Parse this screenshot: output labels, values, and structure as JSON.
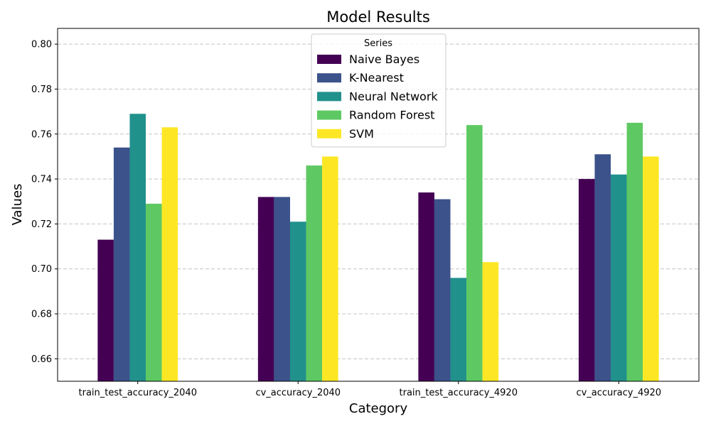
{
  "chart_data": {
    "type": "bar",
    "title": "Model Results",
    "xlabel": "Category",
    "ylabel": "Values",
    "ylim": [
      0.65,
      0.807
    ],
    "yticks": [
      0.66,
      0.68,
      0.7,
      0.72,
      0.74,
      0.76,
      0.78,
      0.8
    ],
    "ytick_labels": [
      "0.66",
      "0.68",
      "0.70",
      "0.72",
      "0.74",
      "0.76",
      "0.78",
      "0.80"
    ],
    "grid": "horizontal-dashed",
    "categories": [
      "train_test_accuracy_2040",
      "cv_accuracy_2040",
      "train_test_accuracy_4920",
      "cv_accuracy_4920"
    ],
    "legend": {
      "title": "Series",
      "placement": "top-center"
    },
    "series": [
      {
        "name": "Naive Bayes",
        "color": "#440154",
        "values": [
          0.713,
          0.732,
          0.734,
          0.74
        ]
      },
      {
        "name": "K-Nearest",
        "color": "#3b528b",
        "values": [
          0.754,
          0.732,
          0.731,
          0.751
        ]
      },
      {
        "name": "Neural Network",
        "color": "#21918c",
        "values": [
          0.769,
          0.721,
          0.696,
          0.742
        ]
      },
      {
        "name": "Random Forest",
        "color": "#5ec962",
        "values": [
          0.729,
          0.746,
          0.764,
          0.765
        ]
      },
      {
        "name": "SVM",
        "color": "#fde725",
        "values": [
          0.763,
          0.75,
          0.703,
          0.75
        ]
      }
    ]
  }
}
